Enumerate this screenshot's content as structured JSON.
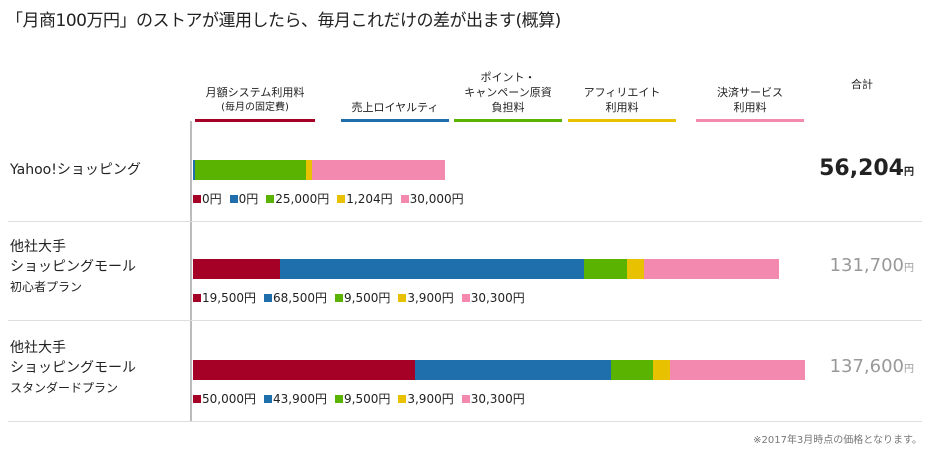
{
  "title": "「月商100万円」のストアが運用したら、毎月これだけの差が出ます(概算)",
  "chart_data": {
    "type": "bar",
    "stacked": true,
    "orientation": "horizontal",
    "unit": "円",
    "series": [
      {
        "name": "月額システム利用料",
        "sub": "(毎月の固定費)",
        "color": "#a50026",
        "values": [
          0,
          19500,
          50000
        ]
      },
      {
        "name": "売上ロイヤルティ",
        "color": "#1f6fad",
        "values": [
          0,
          68500,
          43900
        ]
      },
      {
        "name": "ポイント・キャンペーン原資負担料",
        "color": "#5ab300",
        "values": [
          25000,
          9500,
          9500
        ]
      },
      {
        "name": "アフィリエイト利用料",
        "color": "#e8c200",
        "values": [
          1204,
          3900,
          3900
        ]
      },
      {
        "name": "決済サービス利用料",
        "color": "#f389ae",
        "values": [
          30000,
          30300,
          30300
        ]
      }
    ],
    "header_lines": [
      [
        "月額システム利用料",
        "(毎月の固定費)"
      ],
      [
        "売上ロイヤルティ"
      ],
      [
        "ポイント・",
        "キャンペーン原資",
        "負担料"
      ],
      [
        "アフィリエイト",
        "利用料"
      ],
      [
        "決済サービス",
        "利用料"
      ]
    ],
    "total_header": "合計",
    "categories": [
      {
        "lines": [
          "Yahoo!ショッピング"
        ],
        "small": "",
        "total": "56,204",
        "labels": [
          "0円",
          "0円",
          "25,000円",
          "1,204円",
          "30,000円"
        ]
      },
      {
        "lines": [
          "他社大手",
          "ショッピングモール"
        ],
        "small": "初心者プラン",
        "total": "131,700",
        "labels": [
          "19,500円",
          "68,500円",
          "9,500円",
          "3,900円",
          "30,300円"
        ]
      },
      {
        "lines": [
          "他社大手",
          "ショッピングモール"
        ],
        "small": "スタンダードプラン",
        "total": "137,600",
        "labels": [
          "50,000円",
          "43,900円",
          "9,500円",
          "3,900円",
          "30,300円"
        ]
      }
    ],
    "total_unit": "円"
  },
  "note": "※2017年3月時点の価格となります。"
}
